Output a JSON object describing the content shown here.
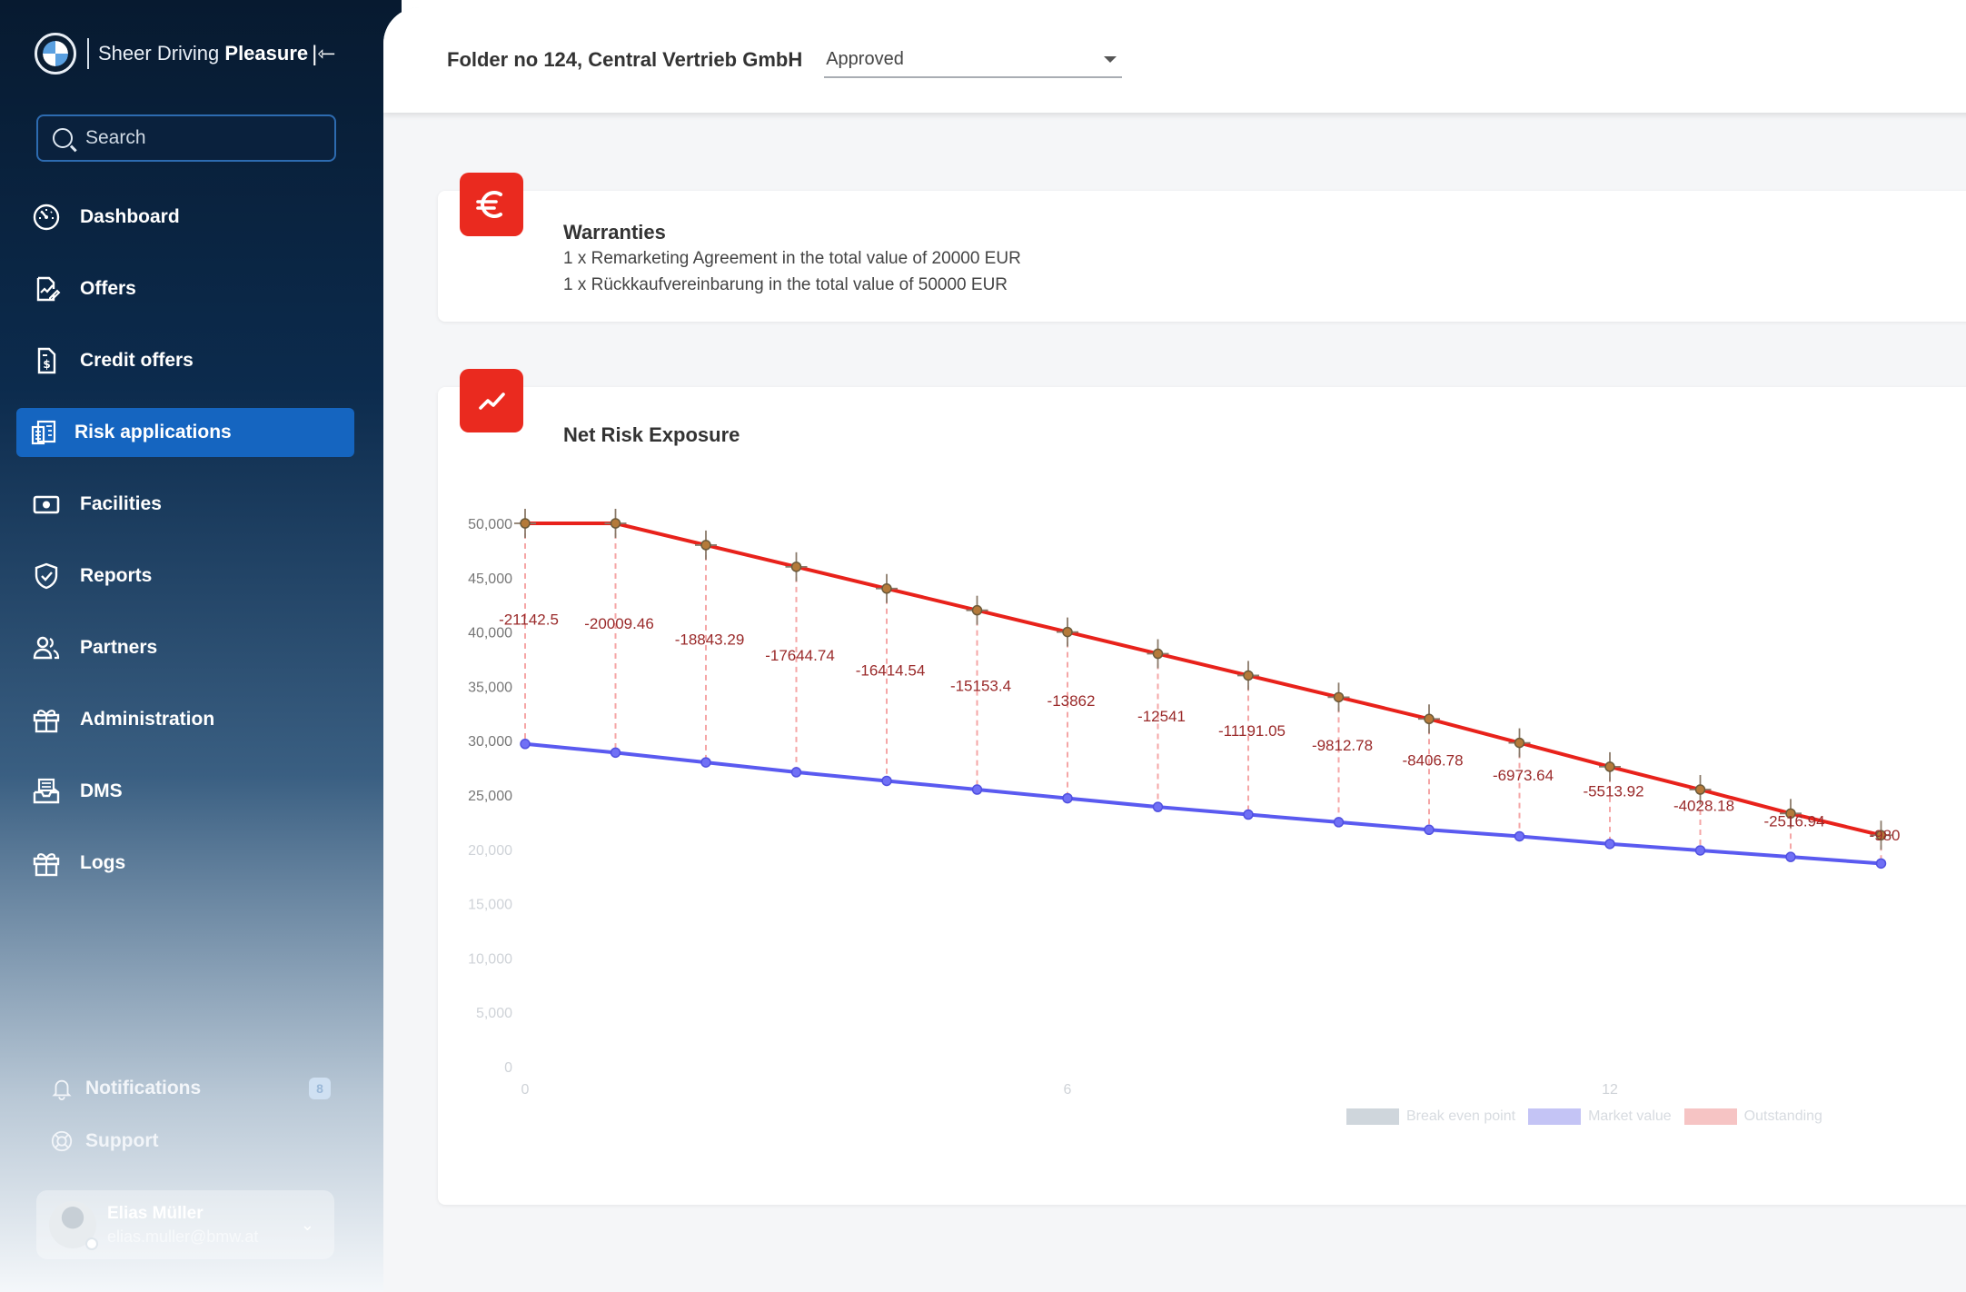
{
  "brand": {
    "text_light": "Sheer Driving ",
    "text_bold": "Pleasure"
  },
  "search": {
    "placeholder": "Search"
  },
  "nav": [
    {
      "label": "Dashboard",
      "icon": "dashboard-icon"
    },
    {
      "label": "Offers",
      "icon": "offers-icon"
    },
    {
      "label": "Credit offers",
      "icon": "credit-offers-icon"
    },
    {
      "label": "Risk applications",
      "icon": "risk-applications-icon",
      "active": true
    },
    {
      "label": "Facilities",
      "icon": "facilities-icon"
    },
    {
      "label": "Reports",
      "icon": "reports-icon"
    },
    {
      "label": "Partners",
      "icon": "partners-icon"
    },
    {
      "label": "Administration",
      "icon": "administration-icon"
    },
    {
      "label": "DMS",
      "icon": "dms-icon"
    },
    {
      "label": "Logs",
      "icon": "logs-icon"
    }
  ],
  "bottom": {
    "notifications_label": "Notifications",
    "notifications_count": "8",
    "support_label": "Support"
  },
  "user": {
    "name": "Elias Müller",
    "email": "elias.muller@bmw.at"
  },
  "header": {
    "folder_title": "Folder no 124, Central Vertrieb GmbH",
    "status": "Approved"
  },
  "warranties": {
    "title": "Warranties",
    "lines": [
      "1 x Remarketing Agreement in the total value of 20000 EUR",
      "1 x Rückkaufvereinbarung in the total value of 50000 EUR"
    ]
  },
  "exposure": {
    "title": "Net Risk Exposure"
  },
  "colors": {
    "accent": "#1565c0",
    "icon_red": "#ea2a1f",
    "outstanding": "#e8221b",
    "market": "#5a5af0"
  },
  "chart_data": {
    "type": "line",
    "x": [
      0,
      1,
      2,
      3,
      4,
      5,
      6,
      7,
      8,
      9,
      10,
      11,
      12,
      13,
      14,
      15
    ],
    "xticks": [
      0,
      6,
      12
    ],
    "ylim": [
      0,
      50000
    ],
    "yticks": [
      0,
      5000,
      10000,
      15000,
      20000,
      25000,
      30000,
      35000,
      40000,
      45000,
      50000
    ],
    "ytick_labels": [
      "0",
      "5,000",
      "10,000",
      "15,000",
      "20,000",
      "25,000",
      "30,000",
      "35,000",
      "40,000",
      "45,000",
      "50,000"
    ],
    "series": [
      {
        "name": "Outstanding",
        "values": [
          50000,
          50000,
          48000,
          46000,
          44000,
          42000,
          40000,
          38000,
          36000,
          34000,
          32000,
          29800,
          27600,
          25500,
          23300,
          21300
        ]
      },
      {
        "name": "Market value",
        "values": [
          29700,
          28900,
          28000,
          27100,
          26300,
          25500,
          24700,
          23900,
          23200,
          22500,
          21800,
          21200,
          20500,
          19900,
          19300,
          18700
        ]
      }
    ],
    "labels": [
      "-21142.5",
      "-20009.46",
      "-18843.29",
      "-17644.74",
      "-16414.54",
      "-15153.4",
      "-13862",
      "-12541",
      "-11191.05",
      "-9812.78",
      "-8406.78",
      "-6973.64",
      "-5513.92",
      "-4028.18",
      "-2516.94",
      "-980"
    ],
    "legend": [
      {
        "name": "Break even point",
        "color": "#cfd6dc"
      },
      {
        "name": "Market value",
        "color": "#c4c4f5"
      },
      {
        "name": "Outstanding",
        "color": "#f6c4c4"
      }
    ]
  }
}
